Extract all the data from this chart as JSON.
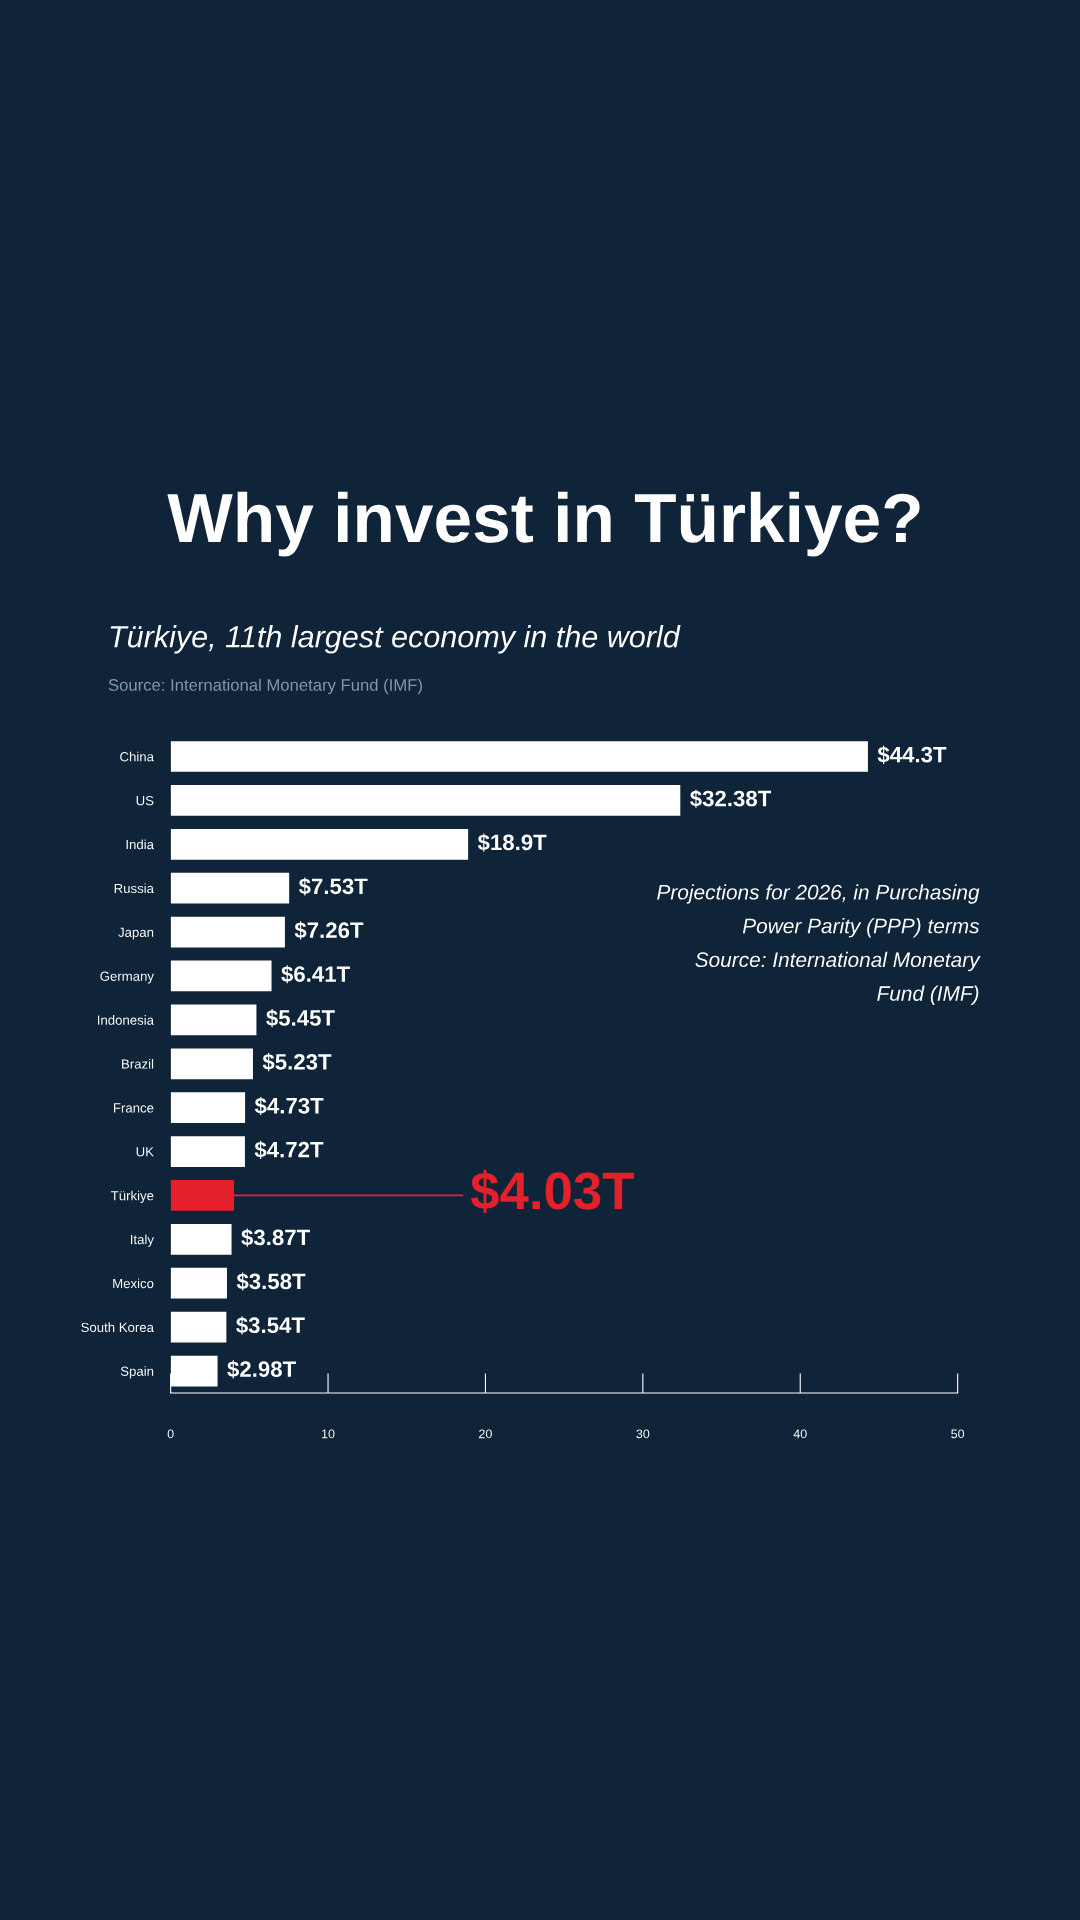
{
  "chart_data": {
    "type": "bar",
    "orientation": "horizontal",
    "title": "Why invest in Türkiye?",
    "subtitle": "Türkiye, 11th largest economy in the world",
    "annotations": [
      "Source: International Monetary Fund (IMF)",
      "Projections for 2026, in Purchasing\nPower Parity (PPP) terms\nSource: International Monetary\nFund (IMF)"
    ],
    "categories": [
      "China",
      "US",
      "India",
      "Russia",
      "Japan",
      "Germany",
      "Indonesia",
      "Brazil",
      "France",
      "UK",
      "Türkiye",
      "Italy",
      "Mexico",
      "South Korea",
      "Spain"
    ],
    "values": [
      44.3,
      32.38,
      18.9,
      7.53,
      7.26,
      6.41,
      5.45,
      5.23,
      4.73,
      4.72,
      4.03,
      3.87,
      3.58,
      3.54,
      2.98
    ],
    "value_labels": [
      "$44.3T",
      "$32.38T",
      "$18.9T",
      "$7.53T",
      "$7.26T",
      "$6.41T",
      "$5.45T",
      "$5.23T",
      "$4.73T",
      "$4.72T",
      "$4.03T",
      "$3.87T",
      "$3.58T",
      "$3.54T",
      "$2.98T"
    ],
    "colors": [
      "#ffffff",
      "#ffffff",
      "#ffffff",
      "#ffffff",
      "#ffffff",
      "#ffffff",
      "#ffffff",
      "#ffffff",
      "#ffffff",
      "#ffffff",
      "#e4202a",
      "#ffffff",
      "#ffffff",
      "#ffffff",
      "#ffffff"
    ],
    "xlim": [
      0,
      50
    ],
    "xticks": [
      0,
      10,
      20,
      30,
      40,
      50
    ],
    "grid": false,
    "legend": false
  }
}
